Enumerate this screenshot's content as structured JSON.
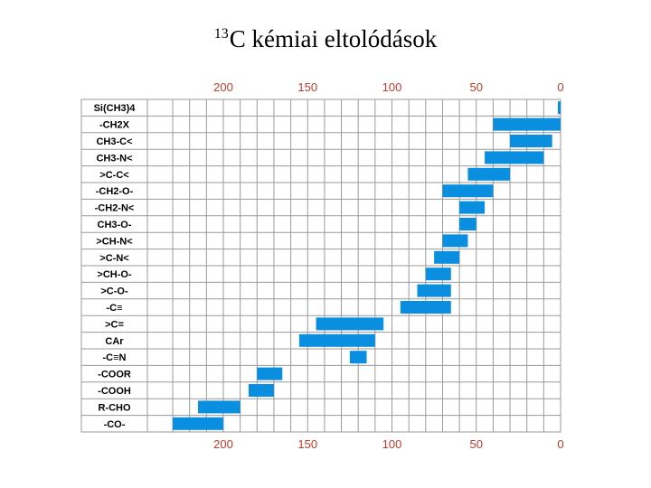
{
  "title": {
    "superscript": "13",
    "text": "C kémiai eltolódások"
  },
  "colors": {
    "bar": "#0a8ee0",
    "grid": "#9a9a9a",
    "ticks": "#c0392b"
  },
  "chart_data": {
    "type": "bar",
    "orientation": "horizontal-range",
    "x_axis": "reversed",
    "xlim": [
      0,
      230
    ],
    "xticks": [
      "200",
      "150",
      "100",
      "50",
      "0"
    ],
    "xtick_values": [
      200,
      150,
      100,
      50,
      0
    ],
    "grid": true,
    "rows": [
      {
        "label": "Si(CH3)4",
        "range": [
          0,
          1
        ]
      },
      {
        "label": "-CH2X",
        "range": [
          0,
          40
        ]
      },
      {
        "label": "CH3-C<",
        "range": [
          5,
          30
        ]
      },
      {
        "label": "CH3-N<",
        "range": [
          10,
          45
        ]
      },
      {
        "label": ">C-C<",
        "range": [
          30,
          55
        ]
      },
      {
        "label": "-CH2-O-",
        "range": [
          40,
          70
        ]
      },
      {
        "label": "-CH2-N<",
        "range": [
          45,
          60
        ]
      },
      {
        "label": "CH3-O-",
        "range": [
          50,
          60
        ]
      },
      {
        "label": ">CH-N<",
        "range": [
          55,
          70
        ]
      },
      {
        "label": ">C-N<",
        "range": [
          60,
          75
        ]
      },
      {
        "label": ">CH-O-",
        "range": [
          65,
          80
        ]
      },
      {
        "label": ">C-O-",
        "range": [
          65,
          85
        ]
      },
      {
        "label": "-C≡",
        "range": [
          65,
          95
        ]
      },
      {
        "label": ">C=",
        "range": [
          105,
          145
        ]
      },
      {
        "label": "CAr",
        "range": [
          110,
          155
        ]
      },
      {
        "label": "-C≡N",
        "range": [
          115,
          125
        ]
      },
      {
        "label": "-COOR",
        "range": [
          165,
          180
        ]
      },
      {
        "label": "-COOH",
        "range": [
          170,
          185
        ]
      },
      {
        "label": "R-CHO",
        "range": [
          190,
          215
        ]
      },
      {
        "label": "-CO-",
        "range": [
          200,
          230
        ]
      }
    ]
  }
}
